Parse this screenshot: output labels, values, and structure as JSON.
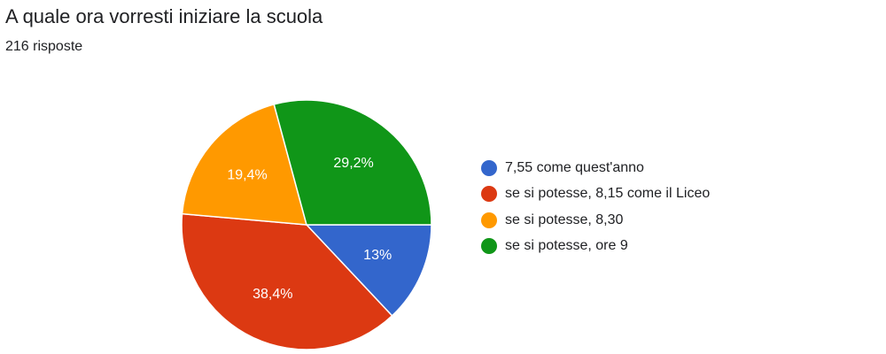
{
  "header": {
    "title": "A quale ora vorresti iniziare la scuola",
    "responses": "216 risposte"
  },
  "chart_data": {
    "type": "pie",
    "title": "A quale ora vorresti iniziare la scuola",
    "subtitle": "216 risposte",
    "slices": [
      {
        "label": "7,55 come quest'anno",
        "value": 13.0,
        "display": "13%",
        "color": "#3366cc"
      },
      {
        "label": "se si potesse, 8,15 come il Liceo",
        "value": 38.4,
        "display": "38,4%",
        "color": "#dc3912"
      },
      {
        "label": "se si potesse, 8,30",
        "value": 19.4,
        "display": "19,4%",
        "color": "#ff9900"
      },
      {
        "label": "se si potesse, ore 9",
        "value": 29.2,
        "display": "29,2%",
        "color": "#109618"
      }
    ],
    "legend_position": "right"
  }
}
